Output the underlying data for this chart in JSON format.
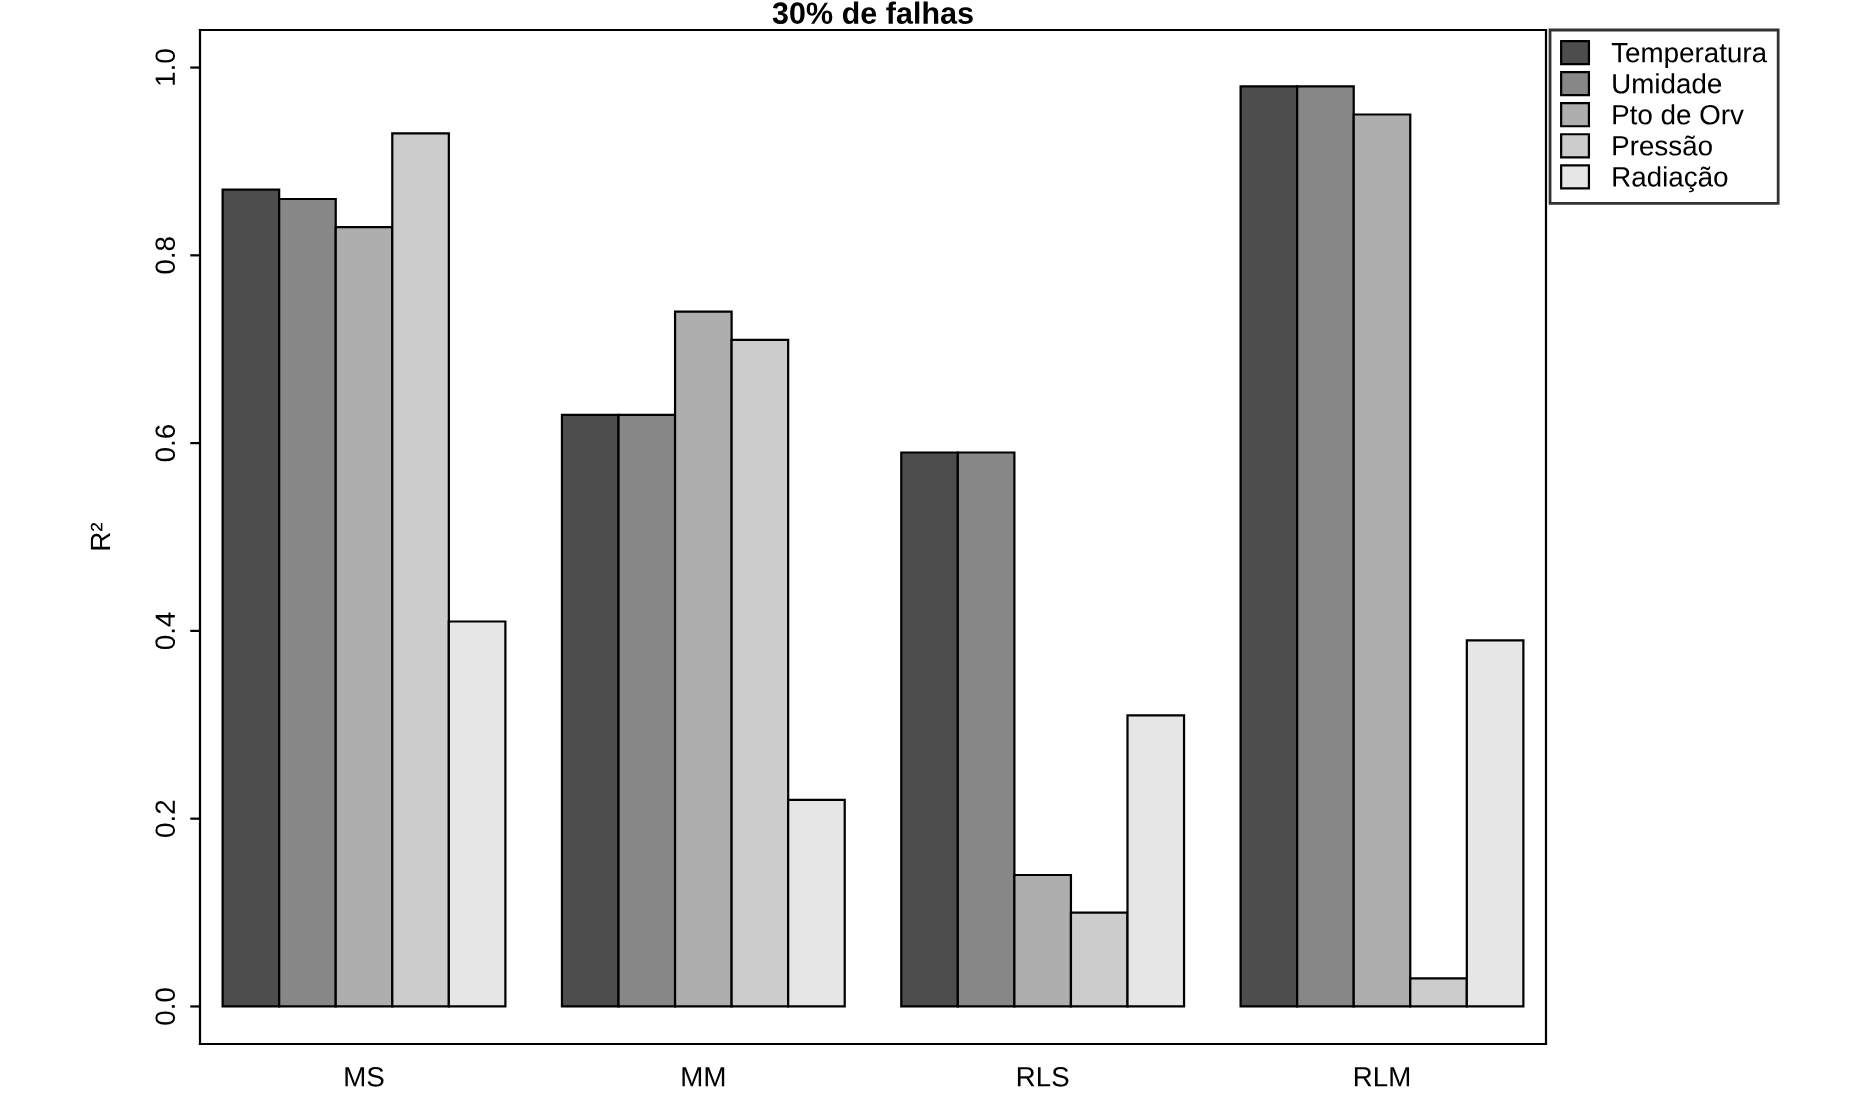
{
  "chart_data": {
    "type": "bar",
    "title": "30% de falhas",
    "ylabel": "R²",
    "categories": [
      "MS",
      "MM",
      "RLS",
      "RLM"
    ],
    "series": [
      {
        "name": "Temperatura",
        "color": "#4d4d4d",
        "values": [
          0.87,
          0.63,
          0.59,
          0.98
        ]
      },
      {
        "name": "Umidade",
        "color": "#878787",
        "values": [
          0.86,
          0.63,
          0.59,
          0.98
        ]
      },
      {
        "name": "Pto de Orv",
        "color": "#aeaeae",
        "values": [
          0.83,
          0.74,
          0.14,
          0.95
        ]
      },
      {
        "name": "Pressão",
        "color": "#cccccc",
        "values": [
          0.93,
          0.71,
          0.1,
          0.03
        ]
      },
      {
        "name": "Radiação",
        "color": "#e6e6e6",
        "values": [
          0.41,
          0.22,
          0.31,
          0.39
        ]
      }
    ],
    "ylim": [
      -0.04,
      1.04
    ],
    "yticks": [
      {
        "value": 0,
        "label": "0.0"
      },
      {
        "value": 0.2,
        "label": "0.2"
      },
      {
        "value": 0.4,
        "label": "0.4"
      },
      {
        "value": 0.6,
        "label": "0.6"
      },
      {
        "value": 0.8,
        "label": "0.8"
      },
      {
        "value": 1.0,
        "label": "1.0"
      }
    ],
    "grid": false,
    "legend": "top right"
  }
}
